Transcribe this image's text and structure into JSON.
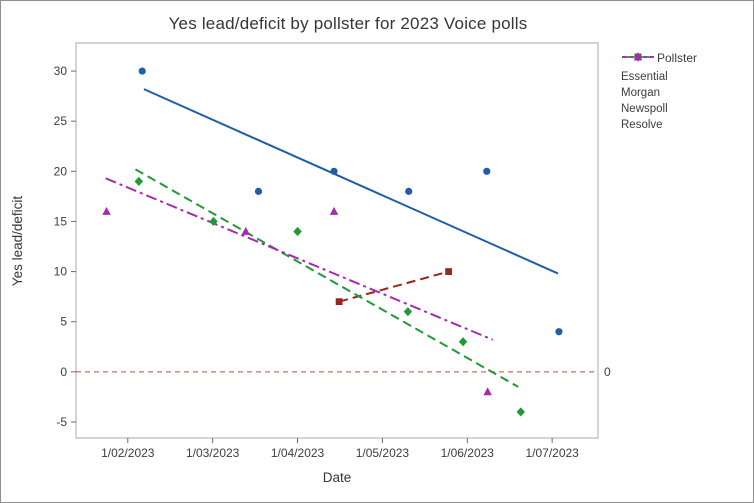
{
  "window": {
    "background": "#ffffff",
    "border_color": "#909090",
    "frame_color": "#a8a8a8",
    "tick_color": "#6b6b6b"
  },
  "chart_data": {
    "type": "scatter",
    "title": "Yes lead/deficit by pollster for 2023 Voice polls",
    "xlabel": "Date",
    "ylabel": "Yes lead/deficit",
    "legend_title": "Pollster",
    "legend_position": "right-top-outside",
    "grid": false,
    "x_scale_note": "x in month units: 1 = 1/02/2023, 2 = 1/03/2023, 3 = 1/04/2023, 4 = 1/05/2023, 5 = 1/06/2023, 6 = 1/07/2023",
    "xlim": [
      0.39,
      6.54
    ],
    "ylim": [
      -6.6,
      32.8
    ],
    "yticks": [
      -5,
      0,
      5,
      10,
      15,
      20,
      25,
      30
    ],
    "xticks": [
      {
        "pos": 1,
        "label": "1/02/2023"
      },
      {
        "pos": 2,
        "label": "1/03/2023"
      },
      {
        "pos": 3,
        "label": "1/04/2023"
      },
      {
        "pos": 4,
        "label": "1/05/2023"
      },
      {
        "pos": 5,
        "label": "1/06/2023"
      },
      {
        "pos": 6,
        "label": "1/07/2023"
      }
    ],
    "reference_line": {
      "y": 0,
      "label": "0",
      "color": "#c9473e",
      "style": "dashed"
    },
    "series": [
      {
        "name": "Essential",
        "color": "#1f5fa8",
        "marker": "circle",
        "line_style": "solid",
        "points": [
          [
            1.17,
            30
          ],
          [
            2.54,
            18
          ],
          [
            3.43,
            20
          ],
          [
            4.31,
            18
          ],
          [
            5.23,
            20
          ],
          [
            6.08,
            4
          ]
        ],
        "trend": [
          [
            1.19,
            28.2
          ],
          [
            6.07,
            9.8
          ]
        ]
      },
      {
        "name": "Morgan",
        "color": "#96271f",
        "marker": "square",
        "line_style": "dashed",
        "points": [
          [
            3.49,
            7
          ],
          [
            4.78,
            10
          ]
        ],
        "trend": [
          [
            3.49,
            7
          ],
          [
            4.78,
            10
          ]
        ]
      },
      {
        "name": "Newspoll",
        "color": "#1f9a35",
        "marker": "diamond",
        "line_style": "dashed",
        "points": [
          [
            1.13,
            19
          ],
          [
            2.01,
            15
          ],
          [
            3.0,
            14
          ],
          [
            4.3,
            6
          ],
          [
            4.95,
            3
          ],
          [
            5.63,
            -4
          ]
        ],
        "trend": [
          [
            1.09,
            20.2
          ],
          [
            5.6,
            -1.5
          ]
        ]
      },
      {
        "name": "Resolve",
        "color": "#a62ab0",
        "marker": "triangle",
        "line_style": "dashdot",
        "points": [
          [
            0.75,
            16
          ],
          [
            2.39,
            14
          ],
          [
            3.43,
            16
          ],
          [
            5.24,
            -2
          ]
        ],
        "trend": [
          [
            0.74,
            19.3
          ],
          [
            5.3,
            3.2
          ]
        ]
      }
    ]
  }
}
